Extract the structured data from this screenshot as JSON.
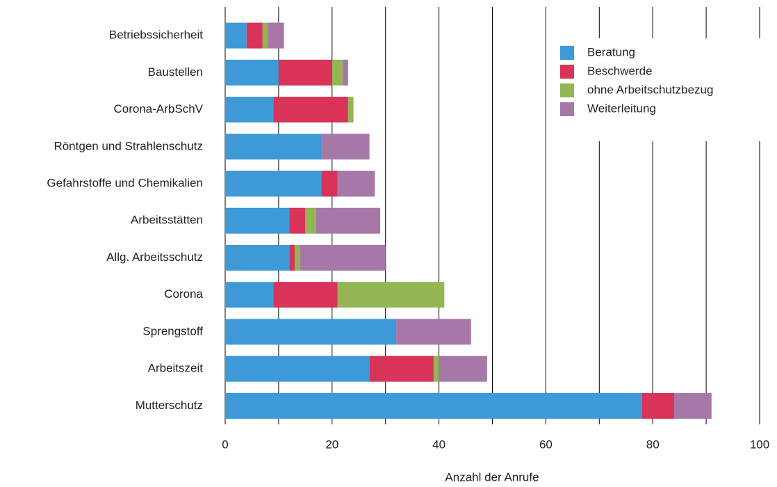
{
  "chart_data": {
    "type": "stacked-bar-horizontal",
    "categories": [
      "Betriebssicherheit",
      "Baustellen",
      "Corona-ArbSchV",
      "Röntgen und Strahlenschutz",
      "Gefahrstoffe und Chemikalien",
      "Arbeitsstätten",
      "Allg. Arbeitsschutz",
      "Corona",
      "Sprengstoff",
      "Arbeitszeit",
      "Mutterschutz"
    ],
    "series": [
      {
        "name": "Beratung",
        "color": "#3d9ad6",
        "values": [
          4,
          10,
          9,
          18,
          18,
          12,
          12,
          9,
          32,
          27,
          78
        ]
      },
      {
        "name": "Beschwerde",
        "color": "#d9335a",
        "values": [
          3,
          10,
          14,
          0,
          3,
          3,
          1,
          12,
          0,
          12,
          6
        ]
      },
      {
        "name": "ohne Arbeitschutzbezug",
        "color": "#93b553",
        "values": [
          1,
          2,
          1,
          0,
          0,
          2,
          1,
          20,
          0,
          1,
          0
        ]
      },
      {
        "name": "Weiterleitung",
        "color": "#a678a8",
        "values": [
          3,
          1,
          0,
          9,
          7,
          12,
          16,
          0,
          14,
          9,
          7
        ]
      }
    ],
    "x_label": "Anzahl der Anrufe",
    "xlim": [
      0,
      100
    ],
    "xticks": [
      0,
      20,
      40,
      60,
      80,
      100
    ],
    "x_minor_ticks": [
      10,
      30,
      50,
      70,
      90
    ],
    "grid": true,
    "legend_position": "upper right"
  }
}
